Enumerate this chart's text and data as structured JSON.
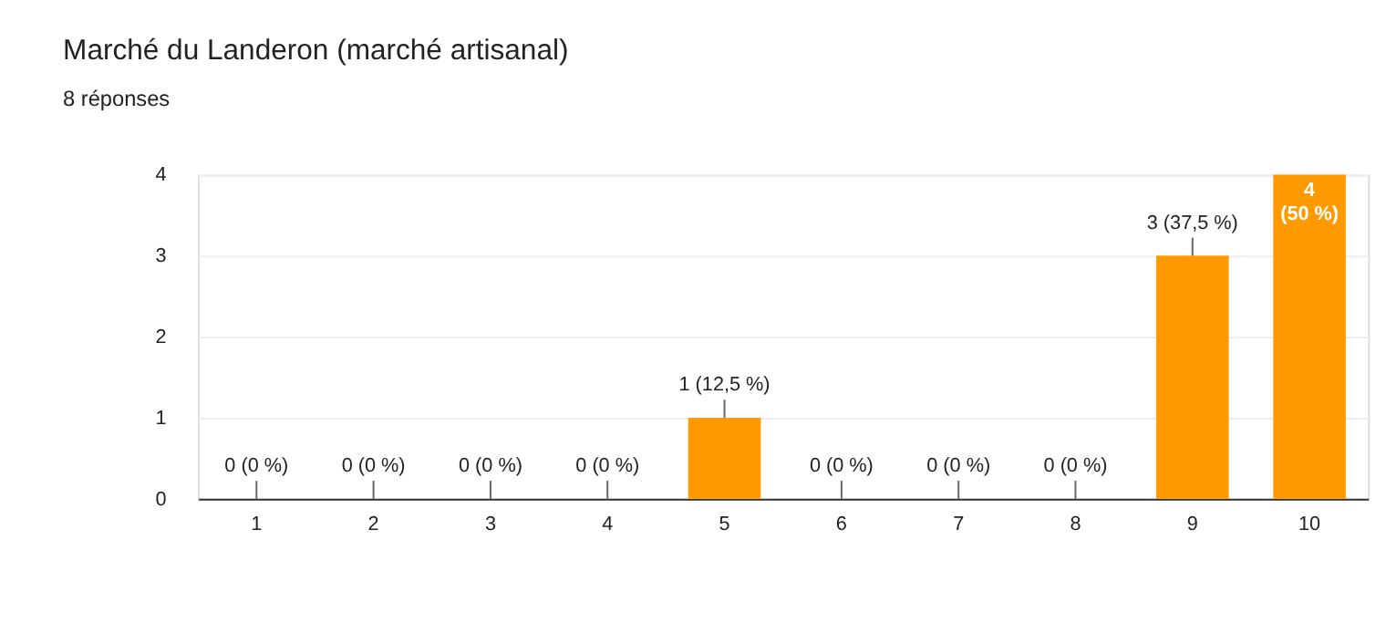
{
  "chart_data": {
    "type": "bar",
    "title": "Marché du Landeron  (marché artisanal)",
    "subtitle": "8 réponses",
    "categories": [
      "1",
      "2",
      "3",
      "4",
      "5",
      "6",
      "7",
      "8",
      "9",
      "10"
    ],
    "values": [
      0,
      0,
      0,
      0,
      1,
      0,
      0,
      0,
      3,
      4
    ],
    "value_labels": [
      "0 (0 %)",
      "0 (0 %)",
      "0 (0 %)",
      "0 (0 %)",
      "1 (12,5 %)",
      "0 (0 %)",
      "0 (0 %)",
      "0 (0 %)",
      "3 (37,5 %)",
      "4\n(50 %)"
    ],
    "color": "#ff9900",
    "ylim": [
      0,
      4
    ],
    "yticks": [
      0,
      1,
      2,
      3,
      4
    ],
    "grid": "y"
  }
}
